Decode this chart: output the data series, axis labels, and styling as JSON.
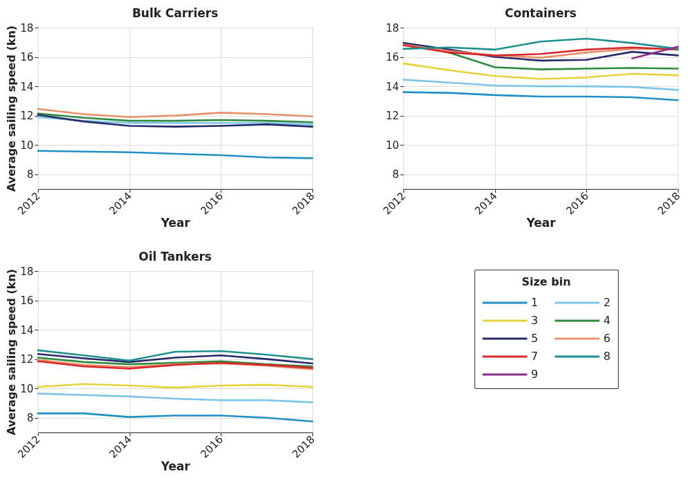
{
  "chart_data": [
    {
      "type": "line",
      "title": "Bulk Carriers",
      "xlabel": "Year",
      "ylabel": "Average sailing speed (kn)",
      "x": [
        2012,
        2013,
        2014,
        2015,
        2016,
        2017,
        2018
      ],
      "xlim": [
        2012,
        2018
      ],
      "xticks": [
        2012,
        2014,
        2016,
        2018
      ],
      "ylim": [
        7,
        18
      ],
      "yticks": [
        8,
        10,
        12,
        14,
        16,
        18
      ],
      "grid": true,
      "legend": false,
      "series": [
        {
          "color": "#1f8fc4",
          "values": [
            9.6,
            9.55,
            9.5,
            9.4,
            9.3,
            9.15,
            9.1
          ]
        },
        {
          "color": "#7cc4ea",
          "values": [
            11.9,
            11.65,
            11.5,
            11.5,
            11.5,
            11.5,
            11.4
          ]
        },
        {
          "color": "#2e8b3e",
          "values": [
            12.15,
            11.85,
            11.65,
            11.65,
            11.7,
            11.65,
            11.55
          ]
        },
        {
          "color": "#262a6b",
          "values": [
            12.05,
            11.6,
            11.3,
            11.25,
            11.3,
            11.4,
            11.25
          ]
        },
        {
          "color": "#e8906a",
          "values": [
            12.45,
            12.1,
            11.9,
            12.0,
            12.2,
            12.1,
            11.95
          ]
        }
      ]
    },
    {
      "type": "line",
      "title": "Containers",
      "xlabel": "Year",
      "legend_title": "Size bin",
      "x": [
        2012,
        2013,
        2014,
        2015,
        2016,
        2017,
        2018
      ],
      "xlim": [
        2012,
        2018
      ],
      "xticks": [
        2012,
        2014,
        2016,
        2018
      ],
      "ylim": [
        7,
        18
      ],
      "yticks": [
        8,
        10,
        12,
        14,
        16,
        18
      ],
      "grid": true,
      "legend": "bottom",
      "series": [
        {
          "name": "1",
          "color": "#1f8fc4",
          "values": [
            13.6,
            13.55,
            13.4,
            13.3,
            13.3,
            13.25,
            13.05
          ]
        },
        {
          "name": "2",
          "color": "#7cc4ea",
          "values": [
            14.45,
            14.25,
            14.05,
            14.0,
            14.0,
            13.95,
            13.75
          ]
        },
        {
          "name": "3",
          "color": "#e6d33a",
          "values": [
            15.55,
            15.1,
            14.7,
            14.5,
            14.6,
            14.85,
            14.75
          ]
        },
        {
          "name": "4",
          "color": "#2e8b3e",
          "values": [
            16.95,
            16.3,
            15.3,
            15.15,
            15.2,
            15.25,
            15.2
          ]
        },
        {
          "name": "5",
          "color": "#262a6b",
          "values": [
            16.95,
            16.5,
            16.0,
            15.75,
            15.8,
            16.35,
            16.1
          ]
        },
        {
          "name": "6",
          "color": "#e8906a",
          "values": [
            16.85,
            16.4,
            16.1,
            15.95,
            16.3,
            16.55,
            16.55
          ]
        },
        {
          "name": "7",
          "color": "#d6282a",
          "values": [
            16.8,
            16.3,
            16.1,
            16.2,
            16.5,
            16.65,
            16.5
          ]
        },
        {
          "name": "8",
          "color": "#1f9090",
          "values": [
            16.55,
            16.65,
            16.5,
            17.05,
            17.25,
            16.95,
            16.55
          ]
        },
        {
          "name": "9",
          "color": "#8a2b8f",
          "values": [
            null,
            null,
            null,
            null,
            null,
            15.9,
            16.7
          ]
        }
      ]
    },
    {
      "type": "line",
      "title": "Oil Tankers",
      "xlabel": "Year",
      "ylabel": "Average sailing speed (kn)",
      "x": [
        2012,
        2013,
        2014,
        2015,
        2016,
        2017,
        2018
      ],
      "xlim": [
        2012,
        2018
      ],
      "xticks": [
        2012,
        2014,
        2016,
        2018
      ],
      "ylim": [
        7,
        18
      ],
      "yticks": [
        8,
        10,
        12,
        14,
        16,
        18
      ],
      "grid": true,
      "legend": false,
      "series": [
        {
          "color": "#1f8fc4",
          "values": [
            8.3,
            8.3,
            8.05,
            8.15,
            8.15,
            8.0,
            7.75
          ]
        },
        {
          "color": "#7cc4ea",
          "values": [
            9.65,
            9.55,
            9.45,
            9.3,
            9.2,
            9.2,
            9.05
          ]
        },
        {
          "color": "#e6d33a",
          "values": [
            10.1,
            10.3,
            10.2,
            10.05,
            10.2,
            10.25,
            10.1
          ]
        },
        {
          "color": "#2e8b3e",
          "values": [
            12.1,
            11.8,
            11.65,
            11.75,
            11.85,
            11.65,
            11.5
          ]
        },
        {
          "color": "#262a6b",
          "values": [
            12.35,
            12.05,
            11.8,
            12.1,
            12.25,
            12.0,
            11.7
          ]
        },
        {
          "color": "#e8906a",
          "values": [
            11.95,
            11.6,
            11.45,
            11.65,
            11.7,
            11.55,
            11.3
          ]
        },
        {
          "color": "#d6282a",
          "values": [
            11.85,
            11.5,
            11.35,
            11.6,
            11.75,
            11.6,
            11.4
          ]
        },
        {
          "color": "#1f9090",
          "values": [
            12.6,
            12.25,
            11.9,
            12.5,
            12.55,
            12.3,
            12.0
          ]
        }
      ]
    }
  ]
}
